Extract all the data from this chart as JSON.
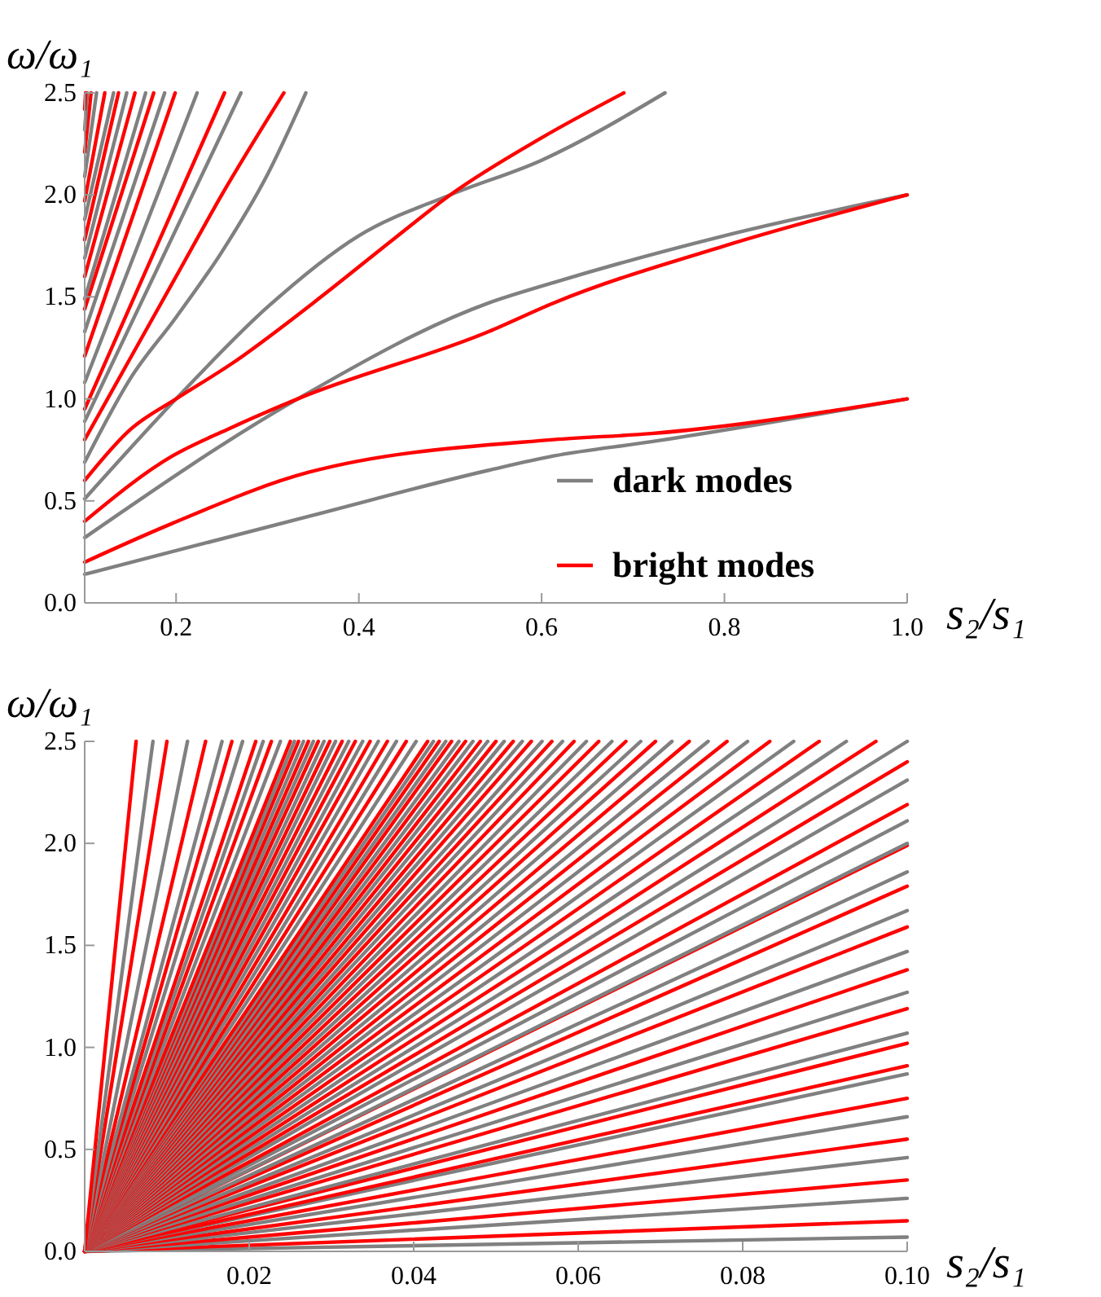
{
  "chart_data": [
    {
      "type": "line",
      "xlabel": "s₂/s₁",
      "ylabel": "ω/ω₁",
      "xlim": [
        0.1,
        1.0
      ],
      "ylim": [
        0,
        2.5
      ],
      "xticks": [
        0.2,
        0.4,
        0.6,
        0.8,
        {
          "value": 1.0,
          "label": "1.0"
        }
      ],
      "yticks": [
        {
          "value": 0,
          "label": "0.0"
        },
        0.5,
        {
          "value": 1.0,
          "label": "1.0"
        },
        1.5,
        {
          "value": 2.0,
          "label": "2.0"
        },
        2.5
      ],
      "legend": "bottom right",
      "series": [
        {
          "name": "dark modes",
          "color": "#808080",
          "x": [
            0.1,
            0.35,
            0.542,
            0.613,
            0.72,
            1.0
          ],
          "values": [
            0.14,
            0.43,
            0.65,
            0.72,
            0.79,
            1.0
          ]
        },
        {
          "name": "bright modes",
          "color": "#ff0000",
          "x": [
            0.1,
            0.196,
            0.345,
            0.613,
            0.72,
            1.0
          ],
          "values": [
            0.2,
            0.39,
            0.64,
            0.8,
            0.83,
            1.0
          ]
        },
        {
          "color": "#808080",
          "x": [
            0.1,
            0.333,
            0.542,
            0.613,
            0.8,
            1.0
          ],
          "values": [
            0.32,
            1.0,
            1.47,
            1.57,
            1.8,
            2.0
          ]
        },
        {
          "color": "#ff0000",
          "x": [
            0.1,
            0.196,
            0.256,
            0.333,
            0.542,
            0.613,
            0.8,
            1.0
          ],
          "values": [
            0.4,
            0.72,
            0.85,
            1.0,
            1.33,
            1.47,
            1.75,
            2.0
          ]
        },
        {
          "color": "#808080",
          "x": [
            0.1,
            0.2,
            0.3,
            0.4,
            0.5,
            0.6,
            0.735
          ],
          "values": [
            0.51,
            1.0,
            1.45,
            1.8,
            2.0,
            2.17,
            2.5
          ]
        },
        {
          "color": "#ff0000",
          "x": [
            0.1,
            0.15,
            0.2,
            0.26,
            0.35,
            0.44,
            0.5,
            0.6,
            0.69
          ],
          "values": [
            0.6,
            0.85,
            1.0,
            1.17,
            1.47,
            1.79,
            2.0,
            2.28,
            2.5
          ]
        },
        {
          "color": "#808080",
          "x": [
            0.1,
            0.15,
            0.2,
            0.25,
            0.3,
            0.342
          ],
          "values": [
            0.69,
            1.1,
            1.4,
            1.72,
            2.1,
            2.5
          ]
        },
        {
          "color": "#ff0000",
          "x": [
            0.1,
            0.15,
            0.2,
            0.25,
            0.318
          ],
          "values": [
            0.8,
            1.2,
            1.6,
            2.0,
            2.5
          ]
        },
        {
          "color": "#808080",
          "x": [
            0.1,
            0.271
          ],
          "values": [
            0.89,
            2.5
          ]
        },
        {
          "color": "#ff0000",
          "x": [
            0.1,
            0.253
          ],
          "values": [
            0.95,
            2.5
          ]
        },
        {
          "color": "#808080",
          "x": [
            0.1,
            0.223
          ],
          "values": [
            1.08,
            2.5
          ]
        },
        {
          "color": "#ff0000",
          "x": [
            0.1,
            0.199
          ],
          "values": [
            1.21,
            2.5
          ]
        },
        {
          "color": "#808080",
          "x": [
            0.1,
            0.1875
          ],
          "values": [
            1.33,
            2.5
          ]
        },
        {
          "color": "#ff0000",
          "x": [
            0.1,
            0.1755
          ],
          "values": [
            1.44,
            2.5
          ]
        },
        {
          "color": "#808080",
          "x": [
            0.1,
            0.1667
          ],
          "values": [
            1.49,
            2.5
          ]
        },
        {
          "color": "#ff0000",
          "x": [
            0.1,
            0.155
          ],
          "values": [
            1.6,
            2.5
          ]
        },
        {
          "color": "#808080",
          "x": [
            0.1,
            0.146
          ],
          "values": [
            1.69,
            2.5
          ]
        },
        {
          "color": "#ff0000",
          "x": [
            0.1,
            0.137
          ],
          "values": [
            1.78,
            2.5
          ]
        },
        {
          "color": "#808080",
          "x": [
            0.1,
            0.1316
          ],
          "values": [
            1.88,
            2.5
          ]
        },
        {
          "color": "#ff0000",
          "x": [
            0.1,
            0.122
          ],
          "values": [
            1.97,
            2.5
          ]
        },
        {
          "color": "#808080",
          "x": [
            0.1,
            0.113
          ],
          "values": [
            2.09,
            2.5
          ]
        },
        {
          "color": "#ff0000",
          "x": [
            0.1,
            0.107
          ],
          "values": [
            2.21,
            2.5
          ]
        },
        {
          "color": "#808080",
          "x": [
            0.1,
            0.103
          ],
          "values": [
            2.32,
            2.5
          ]
        },
        {
          "color": "#ff0000",
          "x": [
            0.1,
            0.101
          ],
          "values": [
            2.42,
            2.5
          ]
        }
      ]
    },
    {
      "type": "line",
      "xlabel": "s₂/s₁",
      "ylabel": "ω/ω₁",
      "xlim": [
        0,
        0.1
      ],
      "ylim": [
        0,
        2.5
      ],
      "xticks": [
        0.02,
        0.04,
        0.06,
        0.08,
        {
          "value": 0.1,
          "label": "0.10"
        }
      ],
      "yticks": [
        {
          "value": 0,
          "label": "0.0"
        },
        0.5,
        {
          "value": 1.0,
          "label": "1.0"
        },
        1.5,
        {
          "value": 2.0,
          "label": "2.0"
        },
        2.5
      ],
      "series": [
        {
          "color": "#808080",
          "x": [
            0,
            0.1
          ],
          "values": [
            0,
            0.07
          ]
        },
        {
          "color": "#ff0000",
          "x": [
            0,
            0.1
          ],
          "values": [
            0,
            0.15
          ]
        },
        {
          "color": "#808080",
          "x": [
            0,
            0.1
          ],
          "values": [
            0,
            0.26
          ]
        },
        {
          "color": "#ff0000",
          "x": [
            0,
            0.1
          ],
          "values": [
            0,
            0.35
          ]
        },
        {
          "color": "#808080",
          "x": [
            0,
            0.1
          ],
          "values": [
            0,
            0.46
          ]
        },
        {
          "color": "#ff0000",
          "x": [
            0,
            0.1
          ],
          "values": [
            0,
            0.55
          ]
        },
        {
          "color": "#808080",
          "x": [
            0,
            0.1
          ],
          "values": [
            0,
            0.66
          ]
        },
        {
          "color": "#ff0000",
          "x": [
            0,
            0.1
          ],
          "values": [
            0,
            0.75
          ]
        },
        {
          "color": "#808080",
          "x": [
            0,
            0.1
          ],
          "values": [
            0,
            0.87
          ]
        },
        {
          "color": "#ff0000",
          "x": [
            0,
            0.1
          ],
          "values": [
            0,
            0.91
          ]
        },
        {
          "color": "#ff0000",
          "x": [
            0,
            0.1
          ],
          "values": [
            0,
            1.02
          ]
        },
        {
          "color": "#808080",
          "x": [
            0,
            0.1
          ],
          "values": [
            0,
            1.07
          ]
        },
        {
          "color": "#ff0000",
          "x": [
            0,
            0.1
          ],
          "values": [
            0,
            1.19
          ]
        },
        {
          "color": "#808080",
          "x": [
            0,
            0.1
          ],
          "values": [
            0,
            1.27
          ]
        },
        {
          "color": "#ff0000",
          "x": [
            0,
            0.1
          ],
          "values": [
            0,
            1.38
          ]
        },
        {
          "color": "#808080",
          "x": [
            0,
            0.1
          ],
          "values": [
            0,
            1.47
          ]
        },
        {
          "color": "#ff0000",
          "x": [
            0,
            0.1
          ],
          "values": [
            0,
            1.59
          ]
        },
        {
          "color": "#808080",
          "x": [
            0,
            0.1
          ],
          "values": [
            0,
            1.67
          ]
        },
        {
          "color": "#ff0000",
          "x": [
            0,
            0.1
          ],
          "values": [
            0,
            1.79
          ]
        },
        {
          "color": "#808080",
          "x": [
            0,
            0.1
          ],
          "values": [
            0,
            1.86
          ]
        },
        {
          "color": "#ff0000",
          "x": [
            0,
            0.1
          ],
          "values": [
            0,
            1.99
          ]
        },
        {
          "color": "#808080",
          "x": [
            0,
            0.1
          ],
          "values": [
            0,
            2.0
          ]
        },
        {
          "color": "#808080",
          "x": [
            0,
            0.1
          ],
          "values": [
            0,
            2.11
          ]
        },
        {
          "color": "#ff0000",
          "x": [
            0,
            0.1
          ],
          "values": [
            0,
            2.19
          ]
        },
        {
          "color": "#808080",
          "x": [
            0,
            0.1
          ],
          "values": [
            0,
            2.31
          ]
        },
        {
          "color": "#ff0000",
          "x": [
            0,
            0.1
          ],
          "values": [
            0,
            2.4
          ]
        },
        {
          "color": "#808080",
          "x": [
            0,
            0.1
          ],
          "values": [
            0,
            2.5
          ]
        },
        {
          "color": "#ff0000",
          "x": [
            0,
            0.0962
          ],
          "values": [
            0,
            2.5
          ]
        },
        {
          "color": "#808080",
          "x": [
            0,
            0.0926
          ],
          "values": [
            0,
            2.5
          ]
        },
        {
          "color": "#ff0000",
          "x": [
            0,
            0.0893
          ],
          "values": [
            0,
            2.5
          ]
        },
        {
          "color": "#808080",
          "x": [
            0,
            0.0862
          ],
          "values": [
            0,
            2.5
          ]
        },
        {
          "color": "#ff0000",
          "x": [
            0,
            0.0833
          ],
          "values": [
            0,
            2.5
          ]
        },
        {
          "color": "#808080",
          "x": [
            0,
            0.0806
          ],
          "values": [
            0,
            2.5
          ]
        },
        {
          "color": "#ff0000",
          "x": [
            0,
            0.0781
          ],
          "values": [
            0,
            2.5
          ]
        },
        {
          "color": "#808080",
          "x": [
            0,
            0.0758
          ],
          "values": [
            0,
            2.5
          ]
        },
        {
          "color": "#ff0000",
          "x": [
            0,
            0.0735
          ],
          "values": [
            0,
            2.5
          ]
        },
        {
          "color": "#808080",
          "x": [
            0,
            0.0714
          ],
          "values": [
            0,
            2.5
          ]
        },
        {
          "color": "#ff0000",
          "x": [
            0,
            0.0694
          ],
          "values": [
            0,
            2.5
          ]
        },
        {
          "color": "#808080",
          "x": [
            0,
            0.0676
          ],
          "values": [
            0,
            2.5
          ]
        },
        {
          "color": "#ff0000",
          "x": [
            0,
            0.0658
          ],
          "values": [
            0,
            2.5
          ]
        },
        {
          "color": "#808080",
          "x": [
            0,
            0.0641
          ],
          "values": [
            0,
            2.5
          ]
        },
        {
          "color": "#ff0000",
          "x": [
            0,
            0.0625
          ],
          "values": [
            0,
            2.5
          ]
        },
        {
          "color": "#808080",
          "x": [
            0,
            0.061
          ],
          "values": [
            0,
            2.5
          ]
        },
        {
          "color": "#ff0000",
          "x": [
            0,
            0.0595
          ],
          "values": [
            0,
            2.5
          ]
        },
        {
          "color": "#808080",
          "x": [
            0,
            0.0581
          ],
          "values": [
            0,
            2.5
          ]
        },
        {
          "color": "#ff0000",
          "x": [
            0,
            0.0568
          ],
          "values": [
            0,
            2.5
          ]
        },
        {
          "color": "#808080",
          "x": [
            0,
            0.0556
          ],
          "values": [
            0,
            2.5
          ]
        },
        {
          "color": "#ff0000",
          "x": [
            0,
            0.0543
          ],
          "values": [
            0,
            2.5
          ]
        },
        {
          "color": "#808080",
          "x": [
            0,
            0.0532
          ],
          "values": [
            0,
            2.5
          ]
        },
        {
          "color": "#ff0000",
          "x": [
            0,
            0.0521
          ],
          "values": [
            0,
            2.5
          ]
        },
        {
          "color": "#808080",
          "x": [
            0,
            0.051
          ],
          "values": [
            0,
            2.5
          ]
        },
        {
          "color": "#ff0000",
          "x": [
            0,
            0.05
          ],
          "values": [
            0,
            2.5
          ]
        },
        {
          "color": "#808080",
          "x": [
            0,
            0.049
          ],
          "values": [
            0,
            2.5
          ]
        },
        {
          "color": "#ff0000",
          "x": [
            0,
            0.0481
          ],
          "values": [
            0,
            2.5
          ]
        },
        {
          "color": "#808080",
          "x": [
            0,
            0.0472
          ],
          "values": [
            0,
            2.5
          ]
        },
        {
          "color": "#ff0000",
          "x": [
            0,
            0.0463
          ],
          "values": [
            0,
            2.5
          ]
        },
        {
          "color": "#808080",
          "x": [
            0,
            0.0455
          ],
          "values": [
            0,
            2.5
          ]
        },
        {
          "color": "#ff0000",
          "x": [
            0,
            0.0446
          ],
          "values": [
            0,
            2.5
          ]
        },
        {
          "color": "#808080",
          "x": [
            0,
            0.0439
          ],
          "values": [
            0,
            2.5
          ]
        },
        {
          "color": "#ff0000",
          "x": [
            0,
            0.0431
          ],
          "values": [
            0,
            2.5
          ]
        },
        {
          "color": "#808080",
          "x": [
            0,
            0.0424
          ],
          "values": [
            0,
            2.5
          ]
        },
        {
          "color": "#ff0000",
          "x": [
            0,
            0.0417
          ],
          "values": [
            0,
            2.5
          ]
        },
        {
          "color": "#808080",
          "x": [
            0,
            0.0403
          ],
          "values": [
            0,
            2.5
          ]
        },
        {
          "color": "#ff0000",
          "x": [
            0,
            0.0391
          ],
          "values": [
            0,
            2.5
          ]
        },
        {
          "color": "#808080",
          "x": [
            0,
            0.0379
          ],
          "values": [
            0,
            2.5
          ]
        },
        {
          "color": "#ff0000",
          "x": [
            0,
            0.0368
          ],
          "values": [
            0,
            2.5
          ]
        },
        {
          "color": "#808080",
          "x": [
            0,
            0.0357
          ],
          "values": [
            0,
            2.5
          ]
        },
        {
          "color": "#ff0000",
          "x": [
            0,
            0.0347
          ],
          "values": [
            0,
            2.5
          ]
        },
        {
          "color": "#808080",
          "x": [
            0,
            0.0338
          ],
          "values": [
            0,
            2.5
          ]
        },
        {
          "color": "#ff0000",
          "x": [
            0,
            0.0329
          ],
          "values": [
            0,
            2.5
          ]
        },
        {
          "color": "#808080",
          "x": [
            0,
            0.0321
          ],
          "values": [
            0,
            2.5
          ]
        },
        {
          "color": "#ff0000",
          "x": [
            0,
            0.0313
          ],
          "values": [
            0,
            2.5
          ]
        },
        {
          "color": "#808080",
          "x": [
            0,
            0.0305
          ],
          "values": [
            0,
            2.5
          ]
        },
        {
          "color": "#ff0000",
          "x": [
            0,
            0.0298
          ],
          "values": [
            0,
            2.5
          ]
        },
        {
          "color": "#808080",
          "x": [
            0,
            0.0291
          ],
          "values": [
            0,
            2.5
          ]
        },
        {
          "color": "#ff0000",
          "x": [
            0,
            0.0284
          ],
          "values": [
            0,
            2.5
          ]
        },
        {
          "color": "#808080",
          "x": [
            0,
            0.0278
          ],
          "values": [
            0,
            2.5
          ]
        },
        {
          "color": "#ff0000",
          "x": [
            0,
            0.0272
          ],
          "values": [
            0,
            2.5
          ]
        },
        {
          "color": "#808080",
          "x": [
            0,
            0.0266
          ],
          "values": [
            0,
            2.5
          ]
        },
        {
          "color": "#ff0000",
          "x": [
            0,
            0.026
          ],
          "values": [
            0,
            2.5
          ]
        },
        {
          "color": "#808080",
          "x": [
            0,
            0.0255
          ],
          "values": [
            0,
            2.5
          ]
        },
        {
          "color": "#ff0000",
          "x": [
            0,
            0.025
          ],
          "values": [
            0,
            2.5
          ]
        },
        {
          "color": "#808080",
          "x": [
            0,
            0.0238
          ],
          "values": [
            0,
            2.5
          ]
        },
        {
          "color": "#ff0000",
          "x": [
            0,
            0.0227
          ],
          "values": [
            0,
            2.5
          ]
        },
        {
          "color": "#808080",
          "x": [
            0,
            0.0217
          ],
          "values": [
            0,
            2.5
          ]
        },
        {
          "color": "#ff0000",
          "x": [
            0,
            0.0208
          ],
          "values": [
            0,
            2.5
          ]
        },
        {
          "color": "#808080",
          "x": [
            0,
            0.0192
          ],
          "values": [
            0,
            2.5
          ]
        },
        {
          "color": "#ff0000",
          "x": [
            0,
            0.0179
          ],
          "values": [
            0,
            2.5
          ]
        },
        {
          "color": "#808080",
          "x": [
            0,
            0.0167
          ],
          "values": [
            0,
            2.5
          ]
        },
        {
          "color": "#ff0000",
          "x": [
            0,
            0.0147
          ],
          "values": [
            0,
            2.5
          ]
        },
        {
          "color": "#808080",
          "x": [
            0,
            0.0125
          ],
          "values": [
            0,
            2.5
          ]
        },
        {
          "color": "#ff0000",
          "x": [
            0,
            0.01
          ],
          "values": [
            0,
            2.5
          ]
        },
        {
          "color": "#808080",
          "x": [
            0,
            0.0083
          ],
          "values": [
            0,
            2.5
          ]
        },
        {
          "color": "#ff0000",
          "x": [
            0,
            0.00625
          ],
          "values": [
            0,
            2.5
          ]
        }
      ]
    }
  ]
}
